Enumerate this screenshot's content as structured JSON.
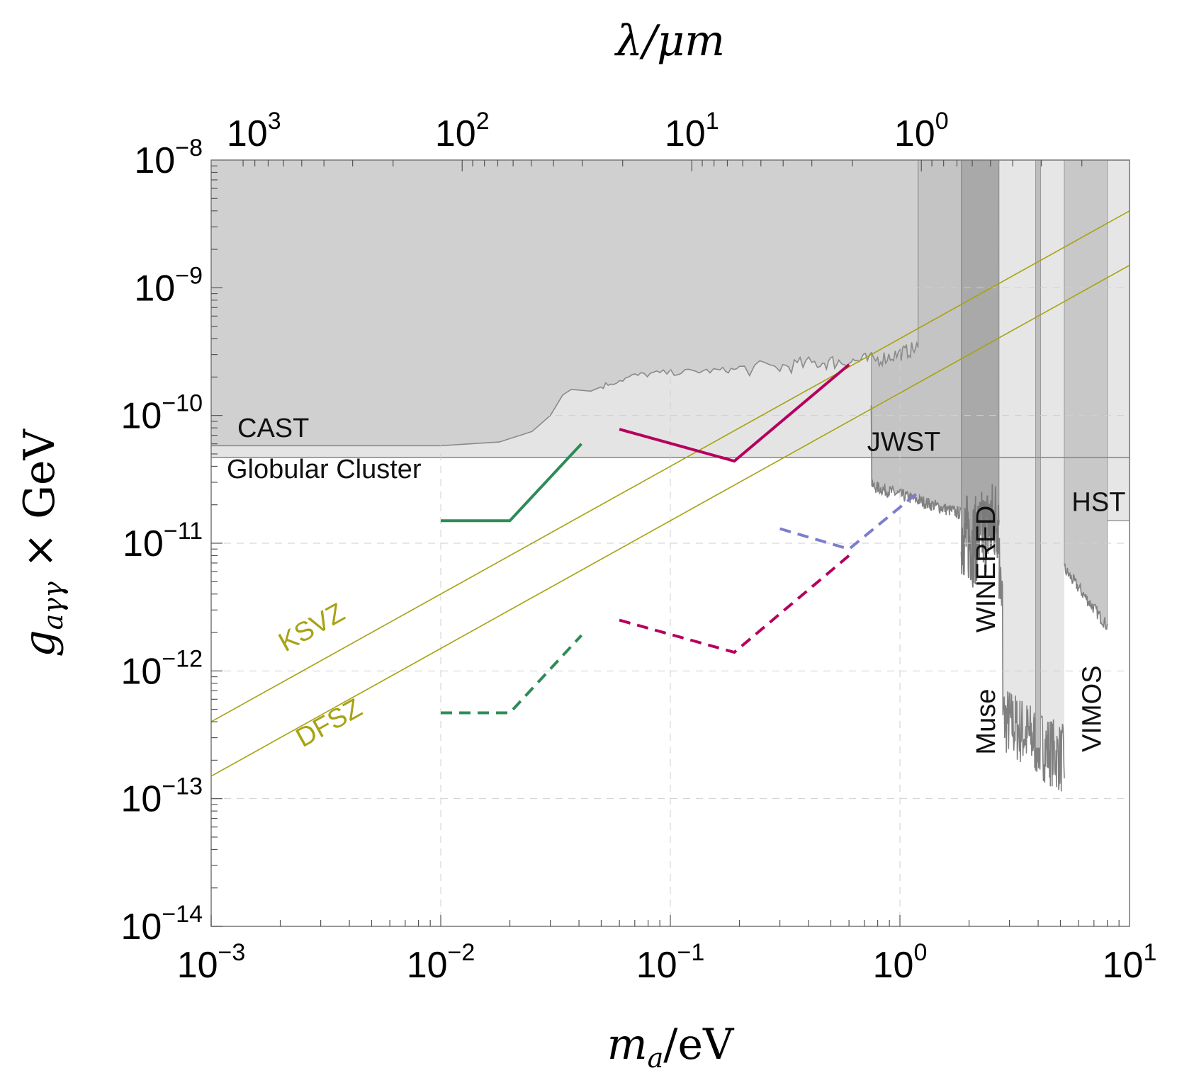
{
  "chart_data": {
    "type": "line",
    "x_axis": {
      "label_main": "m",
      "label_sub": "a",
      "label_rest": "/eV",
      "scale": "log",
      "range": [
        0.001,
        10
      ],
      "ticks": [
        {
          "base": "10",
          "exp": "−3",
          "value": 0.001
        },
        {
          "base": "10",
          "exp": "−2",
          "value": 0.01
        },
        {
          "base": "10",
          "exp": "−1",
          "value": 0.1
        },
        {
          "base": "10",
          "exp": "0",
          "value": 1
        },
        {
          "base": "10",
          "exp": "1",
          "value": 10
        }
      ]
    },
    "x_top_axis": {
      "label": "λ/μm",
      "scale": "log",
      "ticks": [
        {
          "base": "10",
          "exp": "3",
          "value": 1000
        },
        {
          "base": "10",
          "exp": "2",
          "value": 100
        },
        {
          "base": "10",
          "exp": "1",
          "value": 10
        },
        {
          "base": "10",
          "exp": "0",
          "value": 1
        }
      ]
    },
    "y_axis": {
      "label_main": "g",
      "label_sub": "aγγ",
      "label_rest": " × GeV",
      "scale": "log",
      "range": [
        1e-14,
        1e-08
      ],
      "ticks": [
        {
          "base": "10",
          "exp": "−14",
          "value": 1e-14
        },
        {
          "base": "10",
          "exp": "−13",
          "value": 1e-13
        },
        {
          "base": "10",
          "exp": "−12",
          "value": 1e-12
        },
        {
          "base": "10",
          "exp": "−11",
          "value": 1e-11
        },
        {
          "base": "10",
          "exp": "−10",
          "value": 1e-10
        },
        {
          "base": "10",
          "exp": "−9",
          "value": 1e-09
        },
        {
          "base": "10",
          "exp": "−8",
          "value": 1e-08
        }
      ]
    },
    "grid": true,
    "excluded_regions": [
      {
        "name": "CAST",
        "label": "CAST",
        "color": "#d0d0d0",
        "lower_boundary": [
          [
            0.001,
            5.8e-11
          ],
          [
            0.01,
            5.8e-11
          ],
          [
            0.018,
            6.2e-11
          ],
          [
            0.025,
            7.5e-11
          ],
          [
            0.03,
            1e-10
          ],
          [
            0.034,
            1.45e-10
          ],
          [
            0.037,
            1.6e-10
          ],
          [
            0.045,
            1.55e-10
          ],
          [
            0.055,
            1.8e-10
          ],
          [
            0.07,
            2.05e-10
          ],
          [
            0.09,
            2.15e-10
          ],
          [
            0.12,
            2.2e-10
          ],
          [
            0.16,
            2.25e-10
          ],
          [
            0.2,
            2.3e-10
          ],
          [
            0.3,
            2.4e-10
          ],
          [
            0.45,
            2.6e-10
          ],
          [
            0.6,
            2.65e-10
          ],
          [
            0.8,
            2.75e-10
          ],
          [
            1.0,
            3.05e-10
          ],
          [
            1.2,
            3.4e-10
          ]
        ],
        "x_max": 1.2
      },
      {
        "name": "Globular Cluster",
        "label": "Globular Cluster",
        "color": "#e4e4e4",
        "g_limit": 4.7e-11
      },
      {
        "name": "JWST",
        "label": "JWST",
        "color": "#c4c4c4",
        "x_range": [
          0.75,
          1.85
        ],
        "floor": 2.5e-11
      },
      {
        "name": "WINERED",
        "label": "WINERED",
        "color": "#a9a9a9",
        "x_range": [
          1.85,
          2.7
        ],
        "floor": 1e-11
      },
      {
        "name": "Muse",
        "label": "Muse",
        "color": "#e6e6e6",
        "x_range": [
          2.7,
          5.2
        ],
        "floor": 2.5e-13
      },
      {
        "name": "VIMOS",
        "label": "VIMOS",
        "color": "#c8c8c8",
        "x_range": [
          5.2,
          8.0
        ],
        "floor": 2.5e-12
      },
      {
        "name": "HST",
        "label": "HST",
        "color": "#e6e6e6",
        "x_range": [
          5.5,
          10
        ],
        "floor": 1.5e-11
      }
    ],
    "model_lines": [
      {
        "name": "KSVZ",
        "label": "KSVZ",
        "color": "#a7a313",
        "points": [
          [
            0.001,
            4e-13
          ],
          [
            10,
            4e-09
          ]
        ]
      },
      {
        "name": "DFSZ",
        "label": "DFSZ",
        "color": "#a7a313",
        "points": [
          [
            0.001,
            1.5e-13
          ],
          [
            10,
            1.5e-09
          ]
        ]
      }
    ],
    "projections": [
      {
        "name": "green-solid",
        "color": "#2e8b57",
        "dash": false,
        "points": [
          [
            0.01,
            1.5e-11
          ],
          [
            0.02,
            1.5e-11
          ],
          [
            0.041,
            6e-11
          ]
        ]
      },
      {
        "name": "green-dashed",
        "color": "#2e8b57",
        "dash": true,
        "points": [
          [
            0.01,
            4.7e-13
          ],
          [
            0.02,
            4.7e-13
          ],
          [
            0.041,
            1.9e-12
          ]
        ]
      },
      {
        "name": "crimson-solid",
        "color": "#b5005d",
        "dash": false,
        "points": [
          [
            0.06,
            7.8e-11
          ],
          [
            0.19,
            4.4e-11
          ],
          [
            0.6,
            2.5e-10
          ]
        ]
      },
      {
        "name": "crimson-dashed",
        "color": "#b5005d",
        "dash": true,
        "points": [
          [
            0.06,
            2.5e-12
          ],
          [
            0.19,
            1.4e-12
          ],
          [
            0.6,
            8e-12
          ]
        ]
      },
      {
        "name": "blue-dashed",
        "color": "#7d7dcc",
        "dash": true,
        "points": [
          [
            0.3,
            1.3e-11
          ],
          [
            0.6,
            9e-12
          ],
          [
            1.2,
            2.5e-11
          ]
        ]
      }
    ]
  }
}
